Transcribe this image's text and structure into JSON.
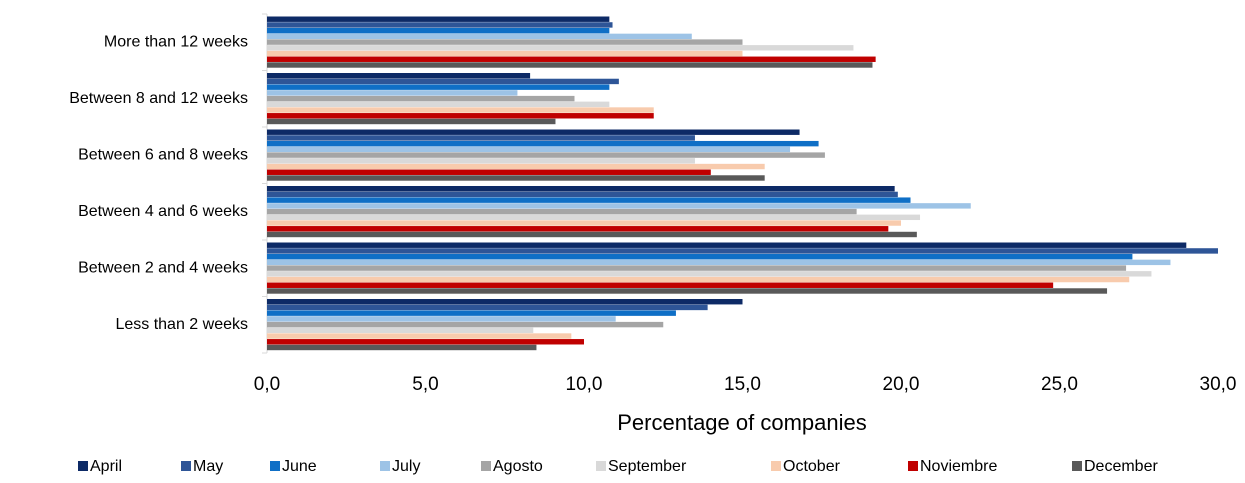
{
  "chart_data": {
    "type": "hbar",
    "x_label": "Percentage of companies",
    "categories": [
      "More than 12 weeks",
      "Between 8 and 12 weeks",
      "Between 6 and 8 weeks",
      "Between 4 and 6 weeks",
      "Between 2 and 4 weeks",
      "Less than 2 weeks"
    ],
    "series": [
      {
        "name": "April",
        "color": "#0d2a66",
        "values": [
          10.8,
          8.3,
          16.8,
          19.8,
          29.0,
          15.0
        ]
      },
      {
        "name": "May",
        "color": "#2e5597",
        "values": [
          10.9,
          11.1,
          13.5,
          19.9,
          30.0,
          13.9
        ]
      },
      {
        "name": "June",
        "color": "#0f6fc6",
        "values": [
          10.8,
          10.8,
          17.4,
          20.3,
          27.3,
          12.9
        ]
      },
      {
        "name": "July",
        "color": "#9dc3e6",
        "values": [
          13.4,
          7.9,
          16.5,
          22.2,
          28.5,
          11.0
        ]
      },
      {
        "name": "Agosto",
        "color": "#a5a5a5",
        "values": [
          15.0,
          9.7,
          17.6,
          18.6,
          27.1,
          12.5
        ]
      },
      {
        "name": "September",
        "color": "#d9d9d9",
        "values": [
          18.5,
          10.8,
          13.5,
          20.6,
          27.9,
          8.4
        ]
      },
      {
        "name": "October",
        "color": "#f8cbad",
        "values": [
          15.0,
          12.2,
          15.7,
          20.0,
          27.2,
          9.6
        ]
      },
      {
        "name": "Noviembre",
        "color": "#c00000",
        "values": [
          19.2,
          12.2,
          14.0,
          19.6,
          24.8,
          10.0
        ]
      },
      {
        "name": "December",
        "color": "#595959",
        "values": [
          19.1,
          9.1,
          15.7,
          20.5,
          26.5,
          8.5
        ]
      }
    ],
    "xlim": [
      0,
      30
    ],
    "xticks": [
      {
        "value": 0,
        "label": "0,0"
      },
      {
        "value": 5,
        "label": "5,0"
      },
      {
        "value": 10,
        "label": "10,0"
      },
      {
        "value": 15,
        "label": "15,0"
      },
      {
        "value": 20,
        "label": "20,0"
      },
      {
        "value": 25,
        "label": "25,0"
      },
      {
        "value": 30,
        "label": "30,0"
      }
    ],
    "grid": false,
    "legend": "bottom"
  }
}
